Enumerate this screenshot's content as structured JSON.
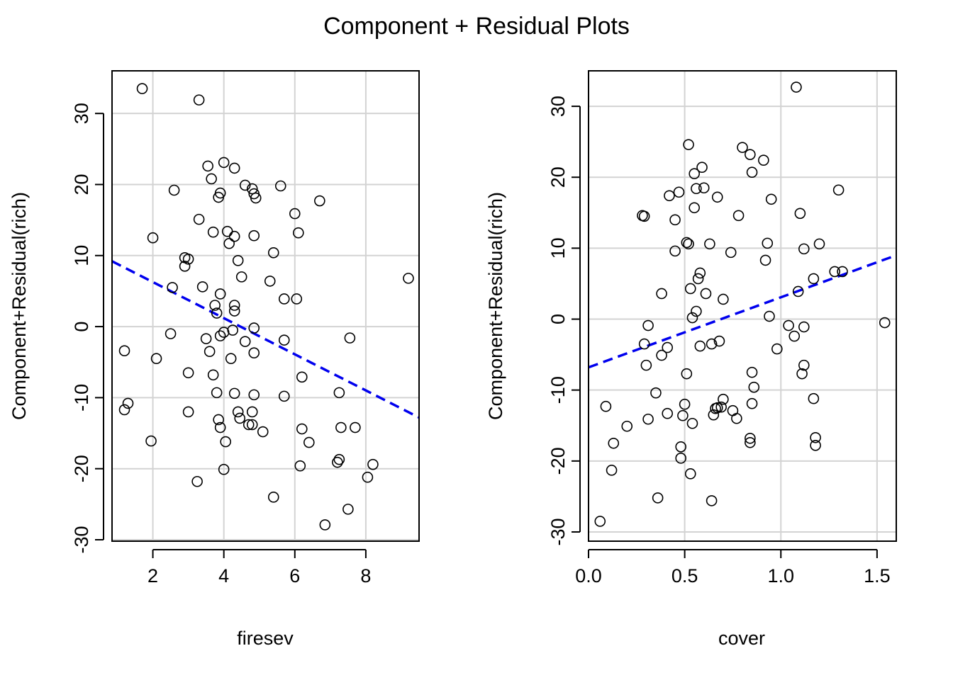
{
  "title": "Component + Residual Plots",
  "colors": {
    "fit_line": "#0000ee",
    "grid": "#d3d3d3"
  },
  "chart_data": [
    {
      "type": "scatter",
      "xlabel": "firesev",
      "ylabel": "Component+Residual(rich)",
      "xlim": [
        0.85,
        9.5
      ],
      "ylim": [
        -30.2,
        36
      ],
      "xticks": [
        2,
        4,
        6,
        8
      ],
      "yticks": [
        -30,
        -20,
        -10,
        0,
        10,
        20,
        30
      ],
      "grid": true,
      "fit_line": {
        "style": "dashed",
        "color": "blue",
        "x": [
          0.85,
          9.5
        ],
        "y": [
          9.2,
          -12.8
        ]
      },
      "points": [
        [
          1.7,
          33.5
        ],
        [
          3.3,
          31.9
        ],
        [
          1.2,
          -3.4
        ],
        [
          1.2,
          -11.7
        ],
        [
          1.3,
          -10.8
        ],
        [
          2.0,
          12.5
        ],
        [
          2.1,
          -4.5
        ],
        [
          1.95,
          -16.1
        ],
        [
          2.5,
          -1.0
        ],
        [
          2.55,
          5.5
        ],
        [
          2.6,
          19.2
        ],
        [
          2.9,
          9.7
        ],
        [
          2.9,
          8.5
        ],
        [
          3.0,
          9.5
        ],
        [
          3.0,
          -6.5
        ],
        [
          3.0,
          -12.0
        ],
        [
          3.25,
          -21.8
        ],
        [
          3.3,
          15.1
        ],
        [
          3.4,
          5.6
        ],
        [
          3.5,
          -1.7
        ],
        [
          3.55,
          22.6
        ],
        [
          3.6,
          -3.5
        ],
        [
          3.65,
          20.8
        ],
        [
          3.7,
          13.3
        ],
        [
          3.7,
          -6.8
        ],
        [
          3.75,
          3.0
        ],
        [
          3.8,
          1.9
        ],
        [
          3.8,
          -9.3
        ],
        [
          3.85,
          18.2
        ],
        [
          3.85,
          -13.1
        ],
        [
          3.9,
          18.8
        ],
        [
          3.9,
          4.6
        ],
        [
          3.9,
          -14.2
        ],
        [
          3.9,
          -1.3
        ],
        [
          4.0,
          23.1
        ],
        [
          4.0,
          -0.8
        ],
        [
          4.0,
          -20.1
        ],
        [
          4.05,
          -16.2
        ],
        [
          4.1,
          13.4
        ],
        [
          4.15,
          11.7
        ],
        [
          4.2,
          -4.5
        ],
        [
          4.25,
          -0.5
        ],
        [
          4.3,
          22.3
        ],
        [
          4.3,
          12.7
        ],
        [
          4.3,
          3.0
        ],
        [
          4.3,
          2.2
        ],
        [
          4.3,
          -9.4
        ],
        [
          4.4,
          9.3
        ],
        [
          4.4,
          -12.0
        ],
        [
          4.45,
          -12.9
        ],
        [
          4.5,
          7.0
        ],
        [
          4.6,
          19.9
        ],
        [
          4.6,
          -2.1
        ],
        [
          4.7,
          -13.8
        ],
        [
          4.8,
          19.4
        ],
        [
          4.8,
          -12.0
        ],
        [
          4.8,
          -13.8
        ],
        [
          4.85,
          18.7
        ],
        [
          4.85,
          12.8
        ],
        [
          4.85,
          -0.2
        ],
        [
          4.85,
          -3.7
        ],
        [
          4.85,
          -9.6
        ],
        [
          4.9,
          18.1
        ],
        [
          5.1,
          -14.8
        ],
        [
          5.3,
          6.4
        ],
        [
          5.4,
          10.4
        ],
        [
          5.4,
          -24.0
        ],
        [
          5.6,
          19.8
        ],
        [
          5.7,
          3.9
        ],
        [
          5.7,
          -1.9
        ],
        [
          5.7,
          -9.8
        ],
        [
          6.0,
          15.9
        ],
        [
          6.05,
          3.9
        ],
        [
          6.1,
          13.2
        ],
        [
          6.15,
          -19.6
        ],
        [
          6.2,
          -7.1
        ],
        [
          6.2,
          -14.4
        ],
        [
          6.4,
          -16.3
        ],
        [
          6.7,
          17.7
        ],
        [
          6.85,
          -27.9
        ],
        [
          7.2,
          -19.1
        ],
        [
          7.25,
          -18.7
        ],
        [
          7.25,
          -9.3
        ],
        [
          7.3,
          -14.2
        ],
        [
          7.5,
          -25.7
        ],
        [
          7.55,
          -1.6
        ],
        [
          7.7,
          -14.2
        ],
        [
          8.05,
          -21.2
        ],
        [
          8.2,
          -19.4
        ],
        [
          9.2,
          6.8
        ]
      ]
    },
    {
      "type": "scatter",
      "xlabel": "cover",
      "ylabel": "Component+Residual(rich)",
      "xlim": [
        0,
        1.6
      ],
      "ylim": [
        -31.3,
        35
      ],
      "xticks": [
        0.0,
        0.5,
        1.0,
        1.5
      ],
      "xtick_labels": [
        "0.0",
        "0.5",
        "1.0",
        "1.5"
      ],
      "yticks": [
        -30,
        -20,
        -10,
        0,
        10,
        20,
        30
      ],
      "grid": true,
      "fit_line": {
        "style": "dashed",
        "color": "blue",
        "x": [
          0,
          1.6
        ],
        "y": [
          -6.8,
          9.0
        ]
      },
      "points": [
        [
          0.06,
          -28.5
        ],
        [
          0.09,
          -12.3
        ],
        [
          0.12,
          -21.3
        ],
        [
          0.13,
          -17.5
        ],
        [
          0.2,
          -15.1
        ],
        [
          0.28,
          14.6
        ],
        [
          0.29,
          14.5
        ],
        [
          0.29,
          -3.5
        ],
        [
          0.3,
          -6.5
        ],
        [
          0.31,
          -0.9
        ],
        [
          0.31,
          -14.1
        ],
        [
          0.35,
          -10.4
        ],
        [
          0.36,
          -25.2
        ],
        [
          0.38,
          3.6
        ],
        [
          0.38,
          -5.1
        ],
        [
          0.41,
          -4.0
        ],
        [
          0.41,
          -13.3
        ],
        [
          0.42,
          17.4
        ],
        [
          0.45,
          14.0
        ],
        [
          0.45,
          9.6
        ],
        [
          0.47,
          17.9
        ],
        [
          0.48,
          -19.6
        ],
        [
          0.48,
          -18.0
        ],
        [
          0.49,
          -13.6
        ],
        [
          0.5,
          -12.0
        ],
        [
          0.51,
          -7.7
        ],
        [
          0.51,
          10.8
        ],
        [
          0.52,
          24.6
        ],
        [
          0.52,
          10.6
        ],
        [
          0.53,
          4.3
        ],
        [
          0.53,
          -21.8
        ],
        [
          0.54,
          0.2
        ],
        [
          0.54,
          -14.7
        ],
        [
          0.55,
          20.5
        ],
        [
          0.55,
          15.7
        ],
        [
          0.56,
          1.1
        ],
        [
          0.56,
          18.4
        ],
        [
          0.57,
          5.7
        ],
        [
          0.58,
          6.5
        ],
        [
          0.58,
          -3.8
        ],
        [
          0.59,
          21.4
        ],
        [
          0.6,
          18.5
        ],
        [
          0.61,
          3.6
        ],
        [
          0.63,
          10.6
        ],
        [
          0.64,
          -3.5
        ],
        [
          0.64,
          -25.6
        ],
        [
          0.65,
          -13.5
        ],
        [
          0.66,
          -12.6
        ],
        [
          0.67,
          17.2
        ],
        [
          0.67,
          -12.5
        ],
        [
          0.68,
          -3.1
        ],
        [
          0.69,
          -12.4
        ],
        [
          0.7,
          2.8
        ],
        [
          0.7,
          -11.3
        ],
        [
          0.74,
          9.4
        ],
        [
          0.75,
          -12.9
        ],
        [
          0.77,
          -14.0
        ],
        [
          0.78,
          14.6
        ],
        [
          0.8,
          24.2
        ],
        [
          0.84,
          23.2
        ],
        [
          0.84,
          -16.8
        ],
        [
          0.84,
          -17.4
        ],
        [
          0.85,
          20.7
        ],
        [
          0.85,
          -7.5
        ],
        [
          0.85,
          -11.9
        ],
        [
          0.86,
          -9.6
        ],
        [
          0.91,
          22.4
        ],
        [
          0.92,
          8.3
        ],
        [
          0.93,
          10.7
        ],
        [
          0.94,
          0.4
        ],
        [
          0.95,
          16.9
        ],
        [
          0.98,
          -4.2
        ],
        [
          1.04,
          -0.9
        ],
        [
          1.07,
          -2.4
        ],
        [
          1.08,
          32.7
        ],
        [
          1.09,
          3.9
        ],
        [
          1.1,
          14.9
        ],
        [
          1.11,
          -7.7
        ],
        [
          1.12,
          9.9
        ],
        [
          1.12,
          -1.1
        ],
        [
          1.12,
          -6.5
        ],
        [
          1.17,
          5.7
        ],
        [
          1.17,
          -11.2
        ],
        [
          1.18,
          -16.7
        ],
        [
          1.18,
          -17.8
        ],
        [
          1.2,
          10.6
        ],
        [
          1.28,
          6.7
        ],
        [
          1.3,
          18.2
        ],
        [
          1.32,
          6.7
        ],
        [
          1.54,
          -0.5
        ]
      ]
    }
  ]
}
